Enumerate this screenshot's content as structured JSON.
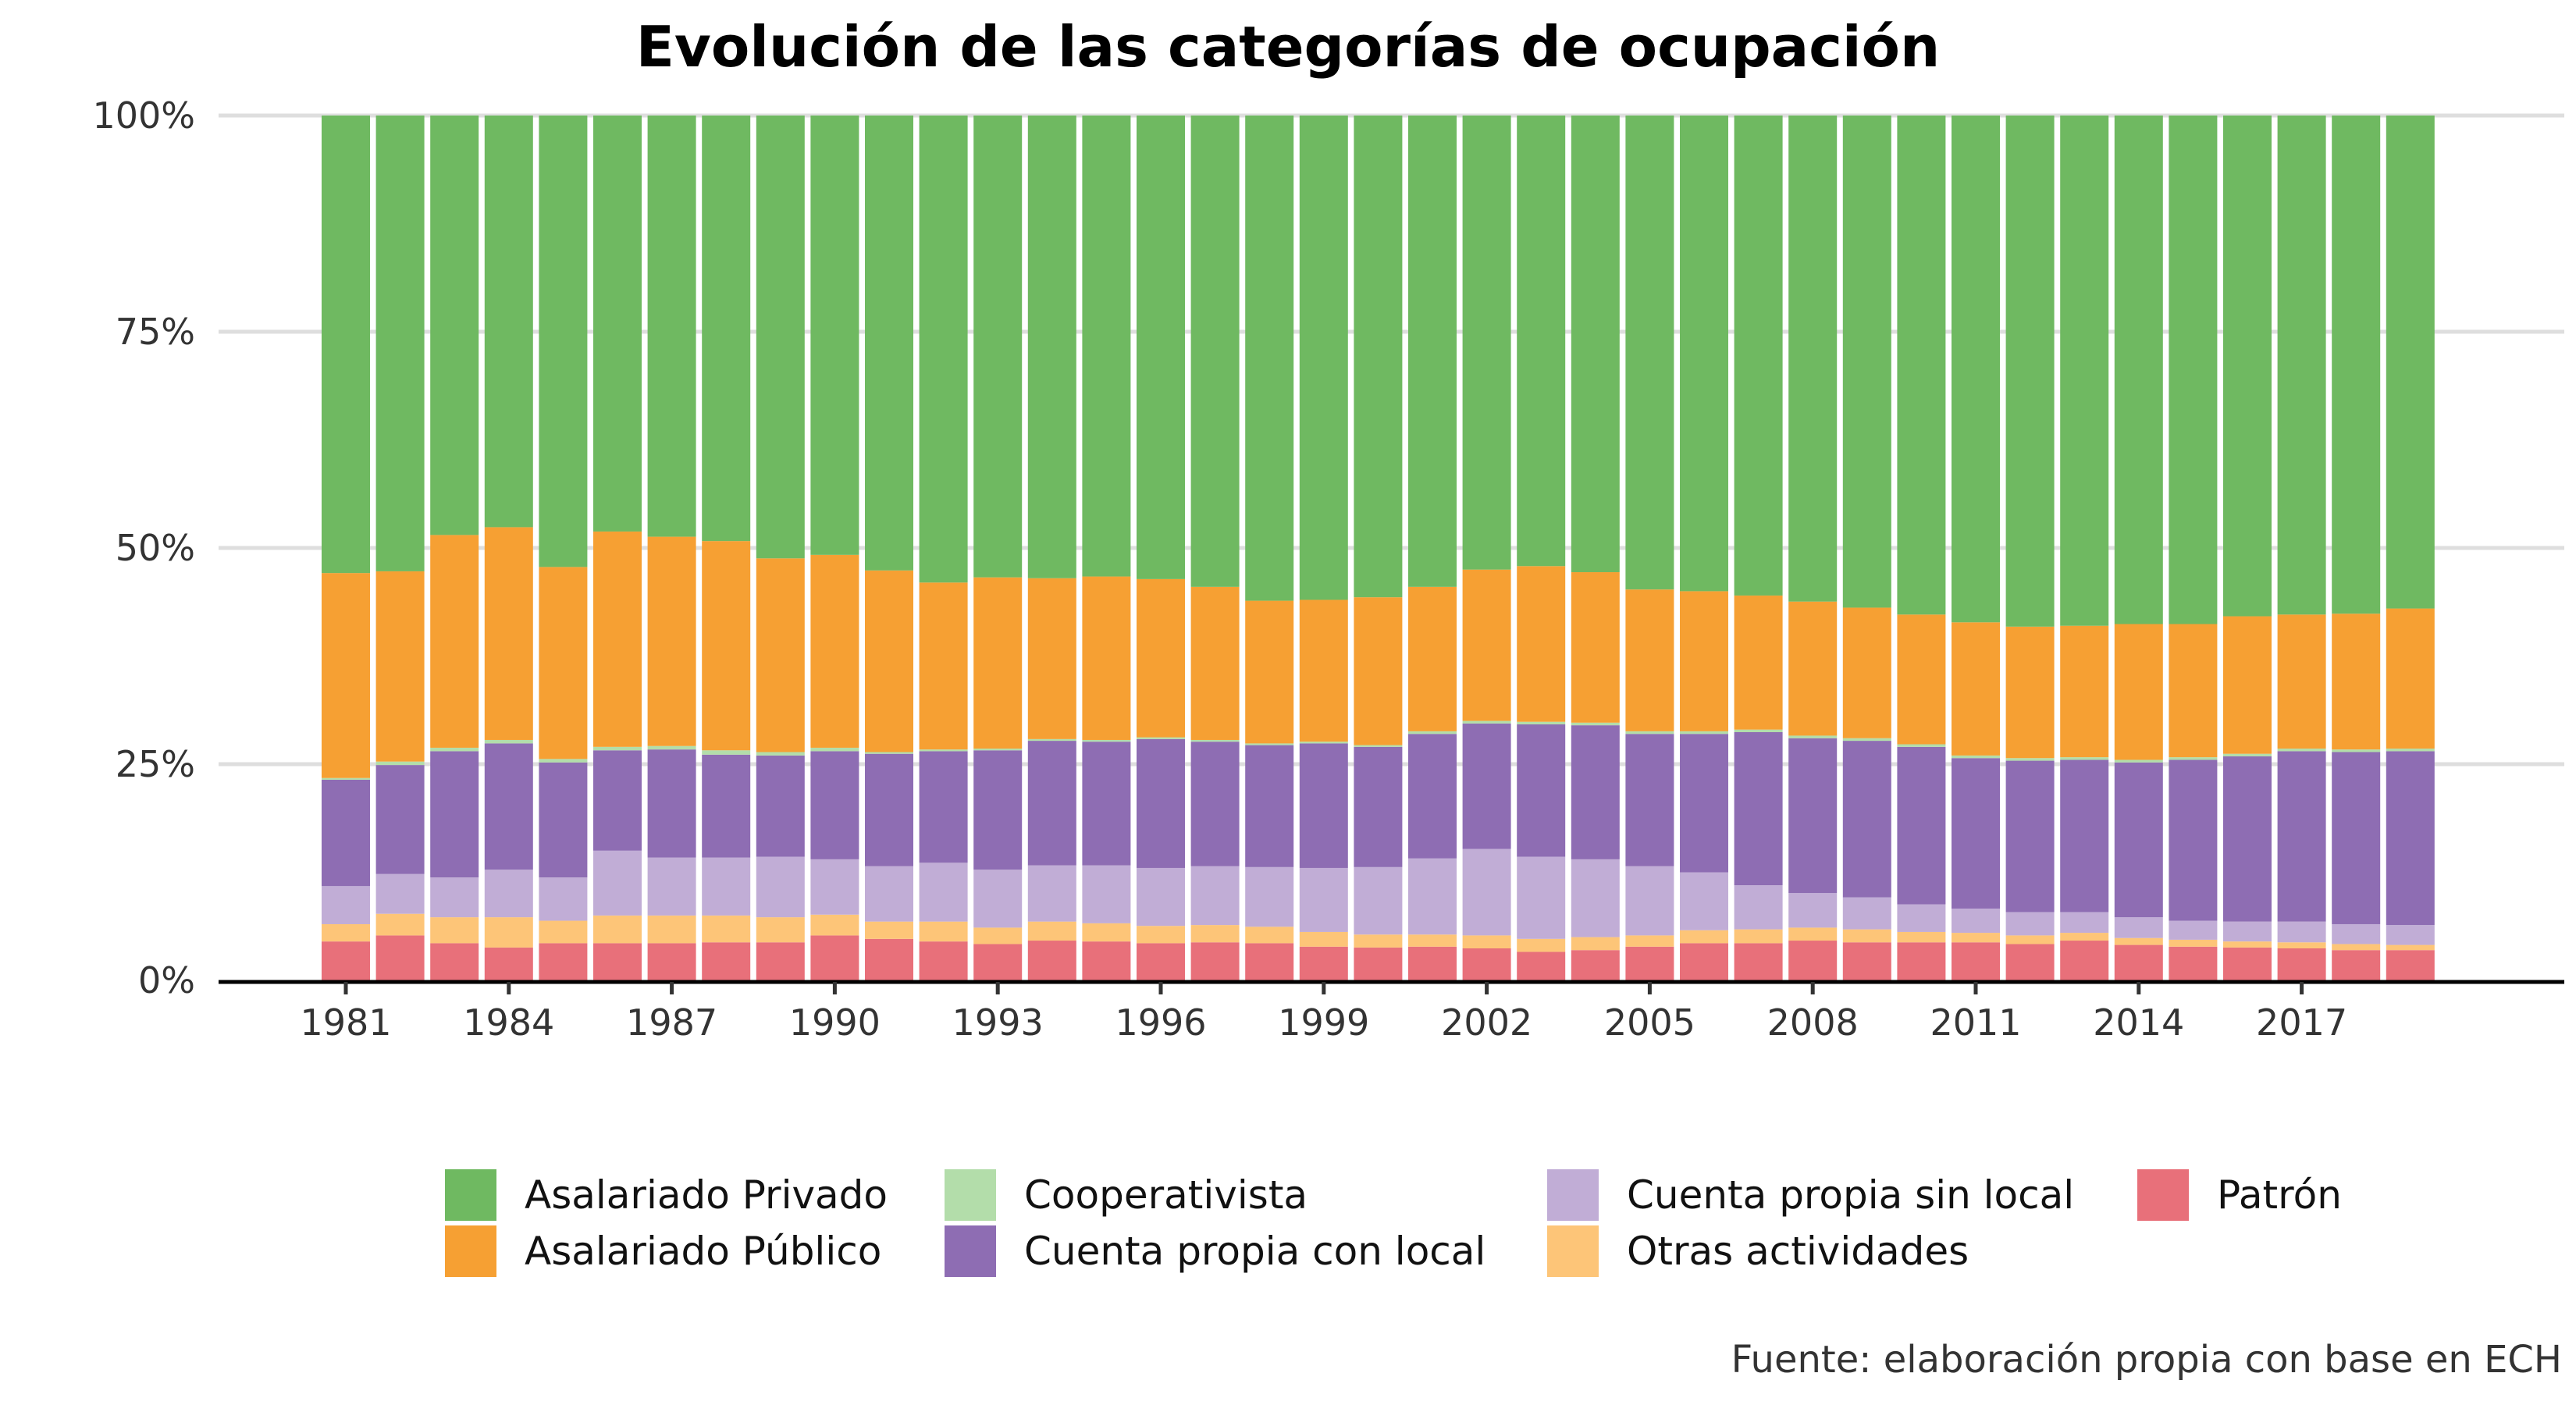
{
  "chart_data": {
    "type": "bar",
    "stacked": true,
    "normalized": true,
    "title": "Evolución de las categorías de ocupación",
    "caption": "Fuente: elaboración propia con base en ECH",
    "xlabel": "",
    "ylabel": "",
    "ylim": [
      0,
      100
    ],
    "y_ticks": [
      "0%",
      "25%",
      "50%",
      "75%",
      "100%"
    ],
    "x_tick_labels": [
      "1981",
      "1984",
      "1987",
      "1990",
      "1993",
      "1996",
      "1999",
      "2002",
      "2005",
      "2008",
      "2011",
      "2014",
      "2017"
    ],
    "categories": [
      "1981",
      "1982",
      "1983",
      "1984",
      "1985",
      "1986",
      "1987",
      "1988",
      "1989",
      "1990",
      "1991",
      "1992",
      "1993",
      "1994",
      "1995",
      "1996",
      "1997",
      "1998",
      "1999",
      "2000",
      "2001",
      "2002",
      "2003",
      "2004",
      "2005",
      "2006",
      "2007",
      "2008",
      "2009",
      "2010",
      "2011",
      "2012",
      "2013",
      "2014",
      "2015",
      "2016",
      "2017",
      "2018",
      "2019"
    ],
    "legend_position": "bottom",
    "grid": true,
    "series": [
      {
        "name": "Patrón",
        "color": "#E8707A",
        "values": [
          4.5,
          5.2,
          4.3,
          3.8,
          4.3,
          4.3,
          4.3,
          4.4,
          4.4,
          5.2,
          4.8,
          4.5,
          4.2,
          4.6,
          4.5,
          4.3,
          4.4,
          4.3,
          3.9,
          3.8,
          3.9,
          3.7,
          3.3,
          3.5,
          3.9,
          4.3,
          4.3,
          4.6,
          4.4,
          4.4,
          4.4,
          4.2,
          4.6,
          4.1,
          3.9,
          3.8,
          3.7,
          3.5,
          3.5
        ]
      },
      {
        "name": "Otras actividades",
        "color": "#FDC578",
        "values": [
          2.0,
          2.5,
          3.0,
          3.5,
          2.6,
          3.2,
          3.2,
          3.1,
          2.9,
          2.4,
          2.0,
          2.3,
          1.9,
          2.2,
          2.1,
          2.0,
          2.0,
          1.9,
          1.7,
          1.5,
          1.4,
          1.5,
          1.5,
          1.5,
          1.3,
          1.5,
          1.6,
          1.5,
          1.5,
          1.2,
          1.1,
          1.0,
          0.9,
          0.8,
          0.8,
          0.7,
          0.7,
          0.7,
          0.6
        ]
      },
      {
        "name": "Cuenta propia sin local",
        "color": "#C1ADD6",
        "values": [
          4.4,
          4.6,
          4.6,
          5.5,
          5.0,
          7.5,
          6.7,
          6.7,
          7.0,
          6.4,
          6.4,
          6.8,
          6.7,
          6.5,
          6.7,
          6.7,
          6.8,
          6.9,
          7.4,
          7.8,
          8.8,
          10.0,
          9.5,
          9.0,
          8.0,
          6.7,
          5.1,
          4.0,
          3.7,
          3.2,
          2.8,
          2.7,
          2.4,
          2.4,
          2.2,
          2.3,
          2.4,
          2.3,
          2.3
        ]
      },
      {
        "name": "Cuenta propia con local",
        "color": "#8E6DB3",
        "values": [
          12.3,
          12.6,
          14.6,
          14.6,
          13.3,
          11.6,
          12.5,
          11.9,
          11.7,
          12.5,
          13.0,
          12.9,
          13.8,
          14.4,
          14.3,
          14.9,
          14.4,
          14.1,
          14.4,
          13.9,
          14.4,
          14.5,
          15.3,
          15.5,
          15.3,
          16.0,
          17.7,
          17.9,
          18.1,
          18.2,
          17.4,
          17.5,
          17.6,
          17.9,
          18.6,
          19.1,
          19.7,
          19.9,
          20.1
        ]
      },
      {
        "name": "Cooperativista",
        "color": "#B3DDAA",
        "values": [
          0.2,
          0.4,
          0.4,
          0.4,
          0.4,
          0.4,
          0.4,
          0.5,
          0.4,
          0.4,
          0.2,
          0.2,
          0.2,
          0.2,
          0.2,
          0.2,
          0.2,
          0.2,
          0.2,
          0.2,
          0.3,
          0.3,
          0.3,
          0.3,
          0.3,
          0.3,
          0.3,
          0.3,
          0.3,
          0.3,
          0.3,
          0.3,
          0.3,
          0.3,
          0.3,
          0.3,
          0.3,
          0.3,
          0.3
        ]
      },
      {
        "name": "Asalariado Público",
        "color": "#F6A033",
        "values": [
          23.7,
          22.0,
          24.6,
          24.6,
          22.2,
          24.9,
          24.2,
          24.2,
          22.4,
          22.3,
          21.0,
          19.3,
          19.8,
          18.6,
          18.9,
          18.3,
          17.7,
          16.5,
          16.4,
          17.1,
          16.7,
          17.5,
          18.0,
          17.4,
          16.4,
          16.2,
          15.5,
          15.5,
          15.1,
          15.0,
          15.4,
          15.2,
          15.2,
          15.7,
          15.4,
          15.9,
          15.5,
          15.7,
          16.2
        ]
      },
      {
        "name": "Asalariado Privado",
        "color": "#6FB961",
        "values": [
          52.9,
          52.7,
          48.5,
          47.6,
          52.2,
          48.1,
          48.7,
          49.2,
          51.2,
          50.8,
          52.6,
          54.0,
          53.4,
          53.5,
          53.3,
          53.6,
          54.5,
          56.1,
          56.0,
          55.7,
          54.5,
          52.5,
          52.1,
          52.8,
          54.8,
          55.0,
          55.5,
          56.2,
          56.9,
          57.7,
          58.6,
          59.1,
          59.0,
          58.8,
          58.8,
          57.9,
          57.7,
          57.6,
          57.0
        ]
      }
    ]
  },
  "legend": {
    "items": [
      {
        "label": "Asalariado Privado",
        "color": "#6FB961"
      },
      {
        "label": "Asalariado Público",
        "color": "#F6A033"
      },
      {
        "label": "Cooperativista",
        "color": "#B3DDAA"
      },
      {
        "label": "Cuenta propia con local",
        "color": "#8E6DB3"
      },
      {
        "label": "Cuenta propia sin local",
        "color": "#C1ADD6"
      },
      {
        "label": "Otras actividades",
        "color": "#FDC578"
      },
      {
        "label": "Patrón",
        "color": "#E8707A"
      }
    ]
  }
}
